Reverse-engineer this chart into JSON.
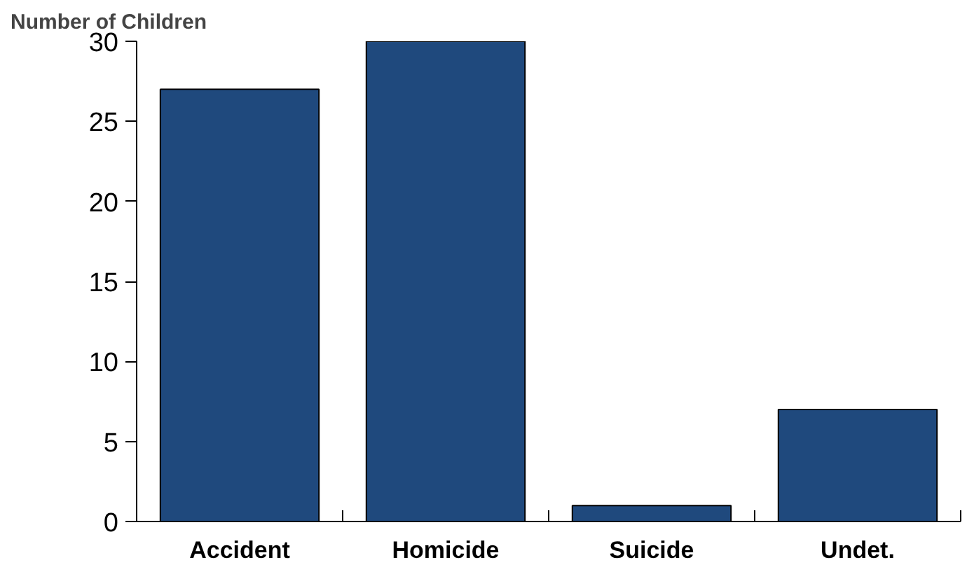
{
  "chart_data": {
    "type": "bar",
    "ylabel": "Number of Children",
    "categories": [
      "Accident",
      "Homicide",
      "Suicide",
      "Undet."
    ],
    "values": [
      27,
      30,
      1,
      7
    ],
    "color": "#1f497d",
    "ylim": [
      0,
      30
    ],
    "yticks": [
      0,
      5,
      10,
      15,
      20,
      25,
      30
    ],
    "grid": false
  }
}
